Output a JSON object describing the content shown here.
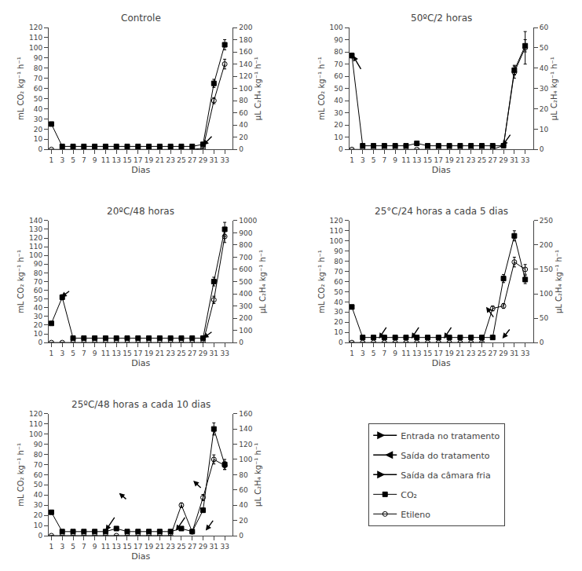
{
  "chart_data": [
    {
      "type": "line",
      "title": "Controle",
      "x_label": "Dias",
      "y_label": "mL CO₂ kg⁻¹ h⁻¹",
      "y2_label": "μL C₂H₄ kg⁻¹ h⁻¹",
      "x": [
        1,
        3,
        5,
        7,
        9,
        11,
        13,
        15,
        17,
        19,
        21,
        23,
        25,
        27,
        29,
        31,
        33
      ],
      "xlim": [
        0.5,
        34.5
      ],
      "xticks": [
        1,
        3,
        5,
        7,
        9,
        11,
        13,
        15,
        17,
        19,
        21,
        23,
        25,
        27,
        29,
        31,
        33
      ],
      "ylim": [
        0,
        120
      ],
      "yticks": [
        0,
        10,
        20,
        30,
        40,
        50,
        60,
        70,
        80,
        90,
        100,
        110,
        120
      ],
      "y2lim": [
        0,
        200
      ],
      "y2ticks": [
        0,
        20,
        40,
        60,
        80,
        100,
        120,
        140,
        160,
        180,
        200
      ],
      "grid": false,
      "series": [
        {
          "name": "CO₂",
          "values": [
            25,
            3,
            3,
            3,
            3,
            3,
            3,
            3,
            3,
            3,
            3,
            3,
            3,
            3,
            5,
            65,
            103
          ],
          "errors": [
            1.5,
            0.3,
            0.3,
            0.3,
            0.3,
            0.3,
            0.3,
            0.3,
            0.3,
            0.3,
            0.3,
            0.3,
            0.3,
            0.3,
            0.5,
            4,
            5
          ],
          "color": "#000000",
          "marker": "square"
        },
        {
          "name": "Etileno",
          "axis": "y2",
          "values": [
            0,
            0,
            0,
            0,
            0,
            0,
            0,
            0,
            0,
            0,
            0,
            0,
            0,
            0,
            2,
            80,
            140
          ],
          "errors": [
            0,
            0,
            0,
            0,
            0,
            0,
            0,
            0,
            0,
            0,
            0,
            0,
            0,
            0,
            0.5,
            5,
            8
          ],
          "color": "#000000",
          "marker": "circle-open"
        }
      ],
      "annotations": [
        {
          "x": 29.0,
          "y": 4,
          "ax": 30.8,
          "ay": 14,
          "color": "#000000"
        }
      ]
    },
    {
      "type": "line",
      "title": "50ºC/2 horas",
      "x_label": "Dias",
      "y_label": "mL CO₂ kg⁻¹ h⁻¹",
      "y2_label": "μL C₂H₄ kg⁻¹ h⁻¹",
      "x": [
        1,
        3,
        5,
        7,
        9,
        11,
        13,
        15,
        17,
        19,
        21,
        23,
        25,
        27,
        29,
        31,
        33
      ],
      "xlim": [
        0.5,
        34.5
      ],
      "xticks": [
        1,
        3,
        5,
        7,
        9,
        11,
        13,
        15,
        17,
        19,
        21,
        23,
        25,
        27,
        29,
        31,
        33
      ],
      "ylim": [
        0,
        100
      ],
      "yticks": [
        0,
        10,
        20,
        30,
        40,
        50,
        60,
        70,
        80,
        90,
        100
      ],
      "y2lim": [
        0,
        60
      ],
      "y2ticks": [
        0,
        10,
        20,
        30,
        40,
        50,
        60
      ],
      "grid": false,
      "series": [
        {
          "name": "CO₂",
          "values": [
            77,
            3,
            3,
            3,
            3,
            3,
            5,
            3,
            3,
            3,
            3,
            3,
            3,
            3,
            3,
            65,
            85
          ],
          "errors": [
            2,
            0.3,
            0.3,
            0.3,
            0.3,
            0.3,
            0.5,
            0.3,
            0.3,
            0.3,
            0.3,
            0.3,
            0.3,
            0.3,
            0.3,
            4,
            5
          ],
          "color": "#000000",
          "marker": "square"
        },
        {
          "name": "Etileno",
          "axis": "y2",
          "values": [
            0,
            0,
            0,
            0,
            0,
            0,
            0,
            0,
            0,
            0,
            0,
            0,
            0,
            0,
            2,
            38,
            50
          ],
          "errors": [
            0,
            0,
            0,
            0,
            0,
            0,
            0,
            0,
            0,
            0,
            0,
            0,
            0,
            0,
            0,
            3,
            8
          ],
          "color": "#000000",
          "marker": "circle-open"
        }
      ],
      "annotations": [
        {
          "x": 1.2,
          "y": 77,
          "ax": 2.8,
          "ay": 65,
          "color": "#000000"
        },
        {
          "x": 28.8,
          "y": 3,
          "ax": 30.4,
          "ay": 13,
          "color": "#000000"
        }
      ]
    },
    {
      "type": "line",
      "title": "20ºC/48 horas",
      "x_label": "Dias",
      "y_label": "mL CO₂ kg⁻¹ h⁻¹",
      "y2_label": "μL C₂H₄ kg⁻¹ h⁻¹",
      "x": [
        1,
        3,
        5,
        7,
        9,
        11,
        13,
        15,
        17,
        19,
        21,
        23,
        25,
        27,
        29,
        31,
        33
      ],
      "xlim": [
        0.5,
        34.5
      ],
      "xticks": [
        1,
        3,
        5,
        7,
        9,
        11,
        13,
        15,
        17,
        19,
        21,
        23,
        25,
        27,
        29,
        31,
        33
      ],
      "ylim": [
        0,
        140
      ],
      "yticks": [
        0,
        10,
        20,
        30,
        40,
        50,
        60,
        70,
        80,
        90,
        100,
        110,
        120,
        130,
        140
      ],
      "y2lim": [
        0,
        1000
      ],
      "y2ticks": [
        0,
        100,
        200,
        300,
        400,
        500,
        600,
        700,
        800,
        900,
        1000
      ],
      "grid": false,
      "series": [
        {
          "name": "CO₂",
          "values": [
            22,
            52,
            5,
            5,
            5,
            5,
            5,
            5,
            5,
            5,
            5,
            5,
            5,
            5,
            5,
            70,
            130
          ],
          "errors": [
            1,
            3,
            0.5,
            0.5,
            0.5,
            0.5,
            0.5,
            0.5,
            0.5,
            0.5,
            0.5,
            0.5,
            0.5,
            0.5,
            0.5,
            5,
            8
          ],
          "color": "#000000",
          "marker": "square"
        },
        {
          "name": "Etileno",
          "axis": "y2",
          "values": [
            0,
            0,
            0,
            0,
            0,
            0,
            0,
            0,
            0,
            0,
            0,
            0,
            0,
            0,
            0,
            350,
            870
          ],
          "errors": [
            0,
            0,
            0,
            0,
            0,
            0,
            0,
            0,
            0,
            0,
            0,
            0,
            0,
            0,
            0,
            30,
            50
          ],
          "color": "#000000",
          "marker": "circle-open"
        }
      ],
      "annotations": [
        {
          "x": 2.8,
          "y": 52,
          "ax": 4.5,
          "ay": 60,
          "color": "#000000"
        },
        {
          "x": 29.0,
          "y": 5,
          "ax": 30.8,
          "ay": 13,
          "color": "#000000"
        }
      ]
    },
    {
      "type": "line",
      "title": "25°C/24 horas a cada 5 dias",
      "x_label": "Dias",
      "y_label": "mL CO₂ kg⁻¹ h⁻¹",
      "y2_label": "μL C₂H₄ kg⁻¹ h⁻¹",
      "x": [
        1,
        3,
        5,
        7,
        9,
        11,
        13,
        15,
        17,
        19,
        21,
        23,
        25,
        27,
        29,
        31,
        33
      ],
      "xlim": [
        0.5,
        34.5
      ],
      "xticks": [
        1,
        3,
        5,
        7,
        9,
        11,
        13,
        15,
        17,
        19,
        21,
        23,
        25,
        27,
        29,
        31,
        33
      ],
      "ylim": [
        0,
        120
      ],
      "yticks": [
        0,
        10,
        20,
        30,
        40,
        50,
        60,
        70,
        80,
        90,
        100,
        110,
        120
      ],
      "y2lim": [
        0,
        250
      ],
      "y2ticks": [
        0,
        50,
        100,
        150,
        200,
        250
      ],
      "grid": false,
      "series": [
        {
          "name": "CO₂",
          "values": [
            35,
            5,
            5,
            5,
            5,
            5,
            5,
            5,
            5,
            5,
            5,
            5,
            5,
            5,
            63,
            105,
            62
          ],
          "errors": [
            2,
            0.5,
            0.5,
            0.5,
            0.5,
            0.5,
            0.5,
            0.5,
            0.5,
            0.5,
            0.5,
            0.5,
            0.5,
            0.5,
            4,
            5,
            4
          ],
          "color": "#000000",
          "marker": "square"
        },
        {
          "name": "Etileno",
          "axis": "y2",
          "values": [
            0,
            0,
            0,
            0,
            0,
            0,
            0,
            0,
            0,
            0,
            0,
            0,
            0,
            70,
            75,
            165,
            150
          ],
          "errors": [
            0,
            0,
            0,
            0,
            0,
            0,
            0,
            0,
            0,
            0,
            0,
            0,
            0,
            5,
            5,
            10,
            10
          ],
          "color": "#000000",
          "marker": "circle-open"
        }
      ],
      "annotations": [
        {
          "x": 6.0,
          "y": 4,
          "ax": 7.5,
          "ay": 16,
          "color": "#000000"
        },
        {
          "x": 12.0,
          "y": 4,
          "ax": 13.5,
          "ay": 16,
          "color": "#000000"
        },
        {
          "x": 18.0,
          "y": 4,
          "ax": 19.5,
          "ay": 16,
          "color": "#000000"
        },
        {
          "x": 25.8,
          "y": 35,
          "ax": 27.3,
          "ay": 24,
          "color": "#000000"
        },
        {
          "x": 28.8,
          "y": 4,
          "ax": 30.3,
          "ay": 14,
          "color": "#000000"
        }
      ]
    },
    {
      "type": "line",
      "title": "25ºC/48 horas a cada 10 dias",
      "x_label": "Dias",
      "y_label": "mL CO₂ kg⁻¹ h⁻¹",
      "y2_label": "μL C₂H₄ kg⁻¹ h⁻¹",
      "x": [
        1,
        3,
        5,
        7,
        9,
        11,
        13,
        15,
        17,
        19,
        21,
        23,
        25,
        27,
        29,
        31,
        33
      ],
      "xlim": [
        0.5,
        34.5
      ],
      "xticks": [
        1,
        3,
        5,
        7,
        9,
        11,
        13,
        15,
        17,
        19,
        21,
        23,
        25,
        27,
        29,
        31,
        33
      ],
      "ylim": [
        0,
        120
      ],
      "yticks": [
        0,
        10,
        20,
        30,
        40,
        50,
        60,
        70,
        80,
        90,
        100,
        110,
        120
      ],
      "y2lim": [
        0,
        160
      ],
      "y2ticks": [
        0,
        20,
        40,
        60,
        80,
        100,
        120,
        140,
        160
      ],
      "grid": false,
      "series": [
        {
          "name": "CO₂",
          "values": [
            23,
            4,
            4,
            4,
            4,
            4,
            7,
            4,
            4,
            4,
            4,
            4,
            7,
            4,
            25,
            105,
            70
          ],
          "errors": [
            1,
            0.3,
            0.3,
            0.3,
            0.3,
            0.3,
            0.5,
            0.3,
            0.3,
            0.3,
            0.3,
            0.3,
            0.5,
            0.3,
            2,
            6,
            5
          ],
          "color": "#000000",
          "marker": "square"
        },
        {
          "name": "Etileno",
          "axis": "y2",
          "values": [
            0,
            0,
            0,
            0,
            0,
            0,
            0,
            0,
            0,
            0,
            0,
            0,
            40,
            5,
            50,
            100,
            92
          ],
          "errors": [
            0,
            0,
            0,
            0,
            0,
            0,
            0,
            0,
            0,
            0,
            0,
            0,
            3,
            0.5,
            4,
            6,
            5
          ],
          "color": "#000000",
          "marker": "circle-open"
        }
      ],
      "annotations": [
        {
          "x": 11.0,
          "y": 5,
          "ax": 12.8,
          "ay": 19,
          "color": "#000000"
        },
        {
          "x": 13.5,
          "y": 42,
          "ax": 15.0,
          "ay": 35,
          "color": "#000000"
        },
        {
          "x": 24.0,
          "y": 5,
          "ax": 25.8,
          "ay": 19,
          "color": "#000000"
        },
        {
          "x": 27.2,
          "y": 54,
          "ax": 28.8,
          "ay": 46,
          "color": "#000000"
        },
        {
          "x": 29.5,
          "y": 5,
          "ax": 31.0,
          "ay": 16,
          "color": "#000000"
        }
      ]
    }
  ],
  "legend": "lower right",
  "legend_entries": [
    {
      "name": "Entrada no tratamento",
      "marker": "arrow-right",
      "color": "#000000"
    },
    {
      "name": "Saída do tratamento",
      "marker": "arrow-left",
      "color": "#000000"
    },
    {
      "name": "Saída da câmara fria",
      "marker": "arrow-right",
      "color": "#000000"
    }
  ]
}
